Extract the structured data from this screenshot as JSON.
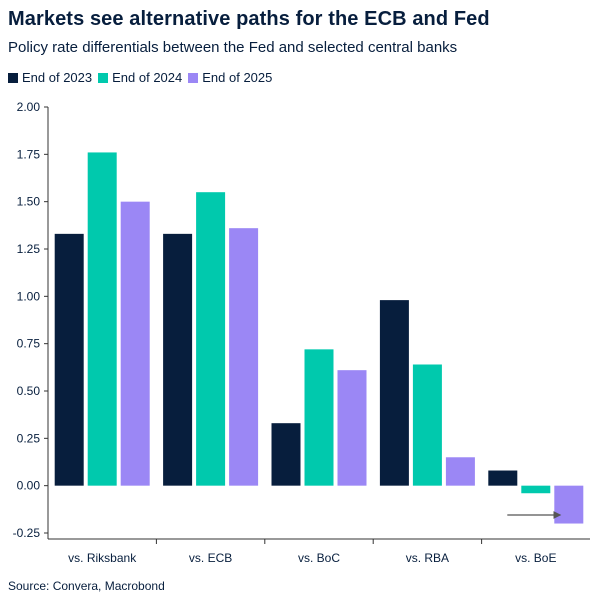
{
  "header": {
    "title": "Markets see alternative paths for the ECB and Fed",
    "subtitle": "Policy rate differentials between the Fed and selected central banks"
  },
  "footer": {
    "source": "Source: Convera, Macrobond"
  },
  "colors": {
    "series_2023": "#071e3d",
    "series_2024": "#00c9ad",
    "series_2025": "#9b87f5",
    "axis": "#333333",
    "arrow": "#555555"
  },
  "chart_data": {
    "type": "bar",
    "title": "Markets see alternative paths for the ECB and Fed",
    "subtitle": "Policy rate differentials between the Fed and selected central banks",
    "xlabel": "",
    "ylabel": "",
    "ylim": [
      -0.25,
      2.0
    ],
    "yticks": [
      -0.25,
      0.0,
      0.25,
      0.5,
      0.75,
      1.0,
      1.25,
      1.5,
      1.75,
      2.0
    ],
    "ytick_labels": [
      "-0.25",
      "0.00",
      "0.25",
      "0.50",
      "0.75",
      "1.00",
      "1.25",
      "1.50",
      "1.75",
      "2.00"
    ],
    "categories": [
      "vs. Riksbank",
      "vs. ECB",
      "vs. BoC",
      "vs. RBA",
      "vs. BoE"
    ],
    "series": [
      {
        "name": "End of 2023",
        "color": "#071e3d",
        "values": [
          1.33,
          1.33,
          0.33,
          0.98,
          0.08
        ]
      },
      {
        "name": "End of 2024",
        "color": "#00c9ad",
        "values": [
          1.76,
          1.55,
          0.72,
          0.64,
          -0.04
        ]
      },
      {
        "name": "End of 2025",
        "color": "#9b87f5",
        "values": [
          1.5,
          1.36,
          0.61,
          0.15,
          -0.2
        ]
      }
    ],
    "legend": "top-left",
    "grid": false,
    "annotations": [
      {
        "type": "arrow",
        "category": "vs. BoE",
        "from_series": "End of 2024",
        "to_series": "End of 2025",
        "y": -0.155
      }
    ]
  }
}
